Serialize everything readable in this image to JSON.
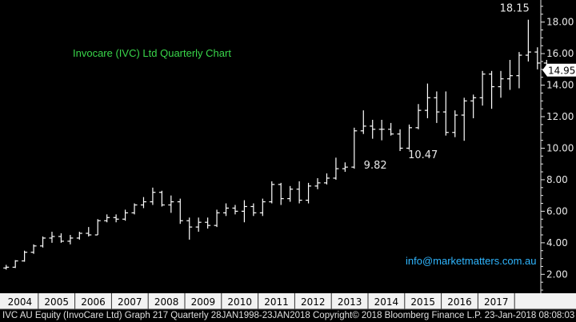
{
  "header": {
    "title": "Invocare (IVC) Ltd Quarterly Chart"
  },
  "watermark": {
    "email": "info@marketmatters.com.au"
  },
  "footer": {
    "text": "IVC AU Equity (InvoCare Ltd) Graph 217  Quarterly 28JAN1998-23JAN2018 Copyright© 2018 Bloomberg Finance L.P. 23-Jan-2018 08:08:03"
  },
  "colors": {
    "background": "#000000",
    "bars": "#ffffff",
    "title": "#39d64a",
    "email": "#2fb6ff",
    "axis_band": "#f2f2f2",
    "last_label_bg": "#ffffff"
  },
  "chart_data": {
    "type": "ohlc",
    "frequency": "quarterly",
    "x_tick_labels": [
      "2004",
      "2005",
      "2006",
      "2007",
      "2008",
      "2009",
      "2010",
      "2011",
      "2012",
      "2013",
      "2014",
      "2015",
      "2016",
      "2017"
    ],
    "y_ticks": [
      "2.00",
      "4.00",
      "6.00",
      "8.00",
      "10.00",
      "12.00",
      "14.00",
      "16.00",
      "18.00"
    ],
    "ylim": [
      0.8,
      19.4
    ],
    "y_axis_position": "right",
    "grid": false,
    "last_value": {
      "value": 14.95,
      "label": "14.95"
    },
    "annotations": [
      {
        "label": "18.15",
        "year_index": 14.0,
        "value": 18.15,
        "position": "above"
      },
      {
        "label": "9.82",
        "year_index": 10.2,
        "value": 9.82,
        "position": "below"
      },
      {
        "label": "10.47",
        "year_index": 11.5,
        "value": 10.47,
        "position": "below"
      }
    ],
    "ohlc": [
      {
        "period": "2003 Q3",
        "open": 2.1,
        "high": 2.3,
        "low": 2.0,
        "close": 2.25
      },
      {
        "period": "2003 Q4",
        "open": 2.25,
        "high": 2.5,
        "low": 2.2,
        "close": 2.4
      },
      {
        "period": "2004 Q1",
        "open": 2.4,
        "high": 2.6,
        "low": 2.3,
        "close": 2.45
      },
      {
        "period": "2004 Q2",
        "open": 2.45,
        "high": 2.9,
        "low": 2.4,
        "close": 2.85
      },
      {
        "period": "2004 Q3",
        "open": 2.85,
        "high": 3.5,
        "low": 2.8,
        "close": 3.4
      },
      {
        "period": "2004 Q4",
        "open": 3.4,
        "high": 3.9,
        "low": 3.3,
        "close": 3.8
      },
      {
        "period": "2005 Q1",
        "open": 3.8,
        "high": 4.4,
        "low": 3.7,
        "close": 4.3
      },
      {
        "period": "2005 Q2",
        "open": 4.3,
        "high": 4.7,
        "low": 4.0,
        "close": 4.4
      },
      {
        "period": "2005 Q3",
        "open": 4.4,
        "high": 4.6,
        "low": 4.0,
        "close": 4.1
      },
      {
        "period": "2005 Q4",
        "open": 4.1,
        "high": 4.5,
        "low": 3.9,
        "close": 4.3
      },
      {
        "period": "2006 Q1",
        "open": 4.3,
        "high": 4.7,
        "low": 4.2,
        "close": 4.6
      },
      {
        "period": "2006 Q2",
        "open": 4.6,
        "high": 5.0,
        "low": 4.4,
        "close": 4.5
      },
      {
        "period": "2006 Q3",
        "open": 4.5,
        "high": 5.5,
        "low": 4.5,
        "close": 5.4
      },
      {
        "period": "2006 Q4",
        "open": 5.4,
        "high": 5.8,
        "low": 5.3,
        "close": 5.6
      },
      {
        "period": "2007 Q1",
        "open": 5.6,
        "high": 5.8,
        "low": 5.3,
        "close": 5.5
      },
      {
        "period": "2007 Q2",
        "open": 5.5,
        "high": 6.1,
        "low": 5.4,
        "close": 5.9
      },
      {
        "period": "2007 Q3",
        "open": 5.9,
        "high": 6.5,
        "low": 5.8,
        "close": 6.4
      },
      {
        "period": "2007 Q4",
        "open": 6.4,
        "high": 6.9,
        "low": 6.2,
        "close": 6.6
      },
      {
        "period": "2008 Q1",
        "open": 6.6,
        "high": 7.5,
        "low": 6.4,
        "close": 7.2
      },
      {
        "period": "2008 Q2",
        "open": 7.2,
        "high": 7.3,
        "low": 6.3,
        "close": 6.4
      },
      {
        "period": "2008 Q3",
        "open": 6.4,
        "high": 7.0,
        "low": 5.9,
        "close": 6.6
      },
      {
        "period": "2008 Q4",
        "open": 6.6,
        "high": 6.8,
        "low": 5.2,
        "close": 5.4
      },
      {
        "period": "2009 Q1",
        "open": 5.4,
        "high": 5.6,
        "low": 4.2,
        "close": 5.0
      },
      {
        "period": "2009 Q2",
        "open": 5.0,
        "high": 5.6,
        "low": 4.7,
        "close": 5.3
      },
      {
        "period": "2009 Q3",
        "open": 5.3,
        "high": 5.6,
        "low": 4.9,
        "close": 5.1
      },
      {
        "period": "2009 Q4",
        "open": 5.1,
        "high": 6.1,
        "low": 5.0,
        "close": 5.9
      },
      {
        "period": "2010 Q1",
        "open": 5.9,
        "high": 6.5,
        "low": 5.7,
        "close": 6.2
      },
      {
        "period": "2010 Q2",
        "open": 6.2,
        "high": 6.4,
        "low": 5.8,
        "close": 6.0
      },
      {
        "period": "2010 Q3",
        "open": 6.0,
        "high": 6.7,
        "low": 5.3,
        "close": 6.3
      },
      {
        "period": "2010 Q4",
        "open": 6.3,
        "high": 6.5,
        "low": 5.7,
        "close": 5.9
      },
      {
        "period": "2011 Q1",
        "open": 5.9,
        "high": 6.8,
        "low": 5.7,
        "close": 6.6
      },
      {
        "period": "2011 Q2",
        "open": 6.6,
        "high": 7.9,
        "low": 6.5,
        "close": 7.7
      },
      {
        "period": "2011 Q3",
        "open": 7.7,
        "high": 7.8,
        "low": 6.4,
        "close": 6.8
      },
      {
        "period": "2011 Q4",
        "open": 6.8,
        "high": 7.6,
        "low": 6.6,
        "close": 7.4
      },
      {
        "period": "2012 Q1",
        "open": 7.4,
        "high": 7.9,
        "low": 6.5,
        "close": 6.7
      },
      {
        "period": "2012 Q2",
        "open": 6.7,
        "high": 7.8,
        "low": 6.5,
        "close": 7.6
      },
      {
        "period": "2012 Q3",
        "open": 7.6,
        "high": 8.1,
        "low": 7.4,
        "close": 7.8
      },
      {
        "period": "2012 Q4",
        "open": 7.8,
        "high": 8.4,
        "low": 7.7,
        "close": 8.1
      },
      {
        "period": "2013 Q1",
        "open": 8.1,
        "high": 9.4,
        "low": 8.0,
        "close": 8.7
      },
      {
        "period": "2013 Q2",
        "open": 8.7,
        "high": 9.1,
        "low": 8.5,
        "close": 8.8
      },
      {
        "period": "2013 Q3",
        "open": 8.8,
        "high": 11.3,
        "low": 8.7,
        "close": 11.1
      },
      {
        "period": "2013 Q4",
        "open": 11.1,
        "high": 12.4,
        "low": 10.9,
        "close": 11.4
      },
      {
        "period": "2014 Q1",
        "open": 11.4,
        "high": 11.8,
        "low": 10.6,
        "close": 11.2
      },
      {
        "period": "2014 Q2",
        "open": 11.2,
        "high": 11.8,
        "low": 10.5,
        "close": 11.2
      },
      {
        "period": "2014 Q3",
        "open": 11.2,
        "high": 11.6,
        "low": 10.8,
        "close": 10.9
      },
      {
        "period": "2014 Q4",
        "open": 10.9,
        "high": 11.2,
        "low": 9.82,
        "close": 10.0
      },
      {
        "period": "2015 Q1",
        "open": 10.0,
        "high": 11.5,
        "low": 9.9,
        "close": 11.3
      },
      {
        "period": "2015 Q2",
        "open": 11.3,
        "high": 12.8,
        "low": 11.2,
        "close": 12.4
      },
      {
        "period": "2015 Q3",
        "open": 12.4,
        "high": 14.1,
        "low": 11.9,
        "close": 13.2
      },
      {
        "period": "2015 Q4",
        "open": 13.2,
        "high": 13.6,
        "low": 11.6,
        "close": 12.3
      },
      {
        "period": "2016 Q1",
        "open": 12.3,
        "high": 13.6,
        "low": 10.8,
        "close": 11.0
      },
      {
        "period": "2016 Q2",
        "open": 11.0,
        "high": 12.4,
        "low": 10.7,
        "close": 12.1
      },
      {
        "period": "2016 Q3",
        "open": 12.1,
        "high": 13.2,
        "low": 10.47,
        "close": 13.0
      },
      {
        "period": "2016 Q4",
        "open": 13.0,
        "high": 13.4,
        "low": 11.9,
        "close": 13.2
      },
      {
        "period": "2017 Q1",
        "open": 13.2,
        "high": 14.9,
        "low": 12.7,
        "close": 14.7
      },
      {
        "period": "2017 Q2",
        "open": 14.7,
        "high": 14.9,
        "low": 12.5,
        "close": 13.9
      },
      {
        "period": "2017 Q3",
        "open": 13.9,
        "high": 14.9,
        "low": 13.2,
        "close": 14.4
      },
      {
        "period": "2017 Q4",
        "open": 14.4,
        "high": 15.6,
        "low": 13.7,
        "close": 14.6
      },
      {
        "period": "2018 Q1",
        "open": 14.6,
        "high": 16.1,
        "low": 13.8,
        "close": 15.9
      },
      {
        "period": "2018 Q2",
        "open": 15.9,
        "high": 18.15,
        "low": 15.5,
        "close": 16.1
      },
      {
        "period": "2018 Q3",
        "open": 16.1,
        "high": 16.4,
        "low": 15.0,
        "close": 15.4
      },
      {
        "period": "2018 Q4",
        "open": 15.4,
        "high": 15.6,
        "low": 14.7,
        "close": 14.95
      }
    ]
  }
}
